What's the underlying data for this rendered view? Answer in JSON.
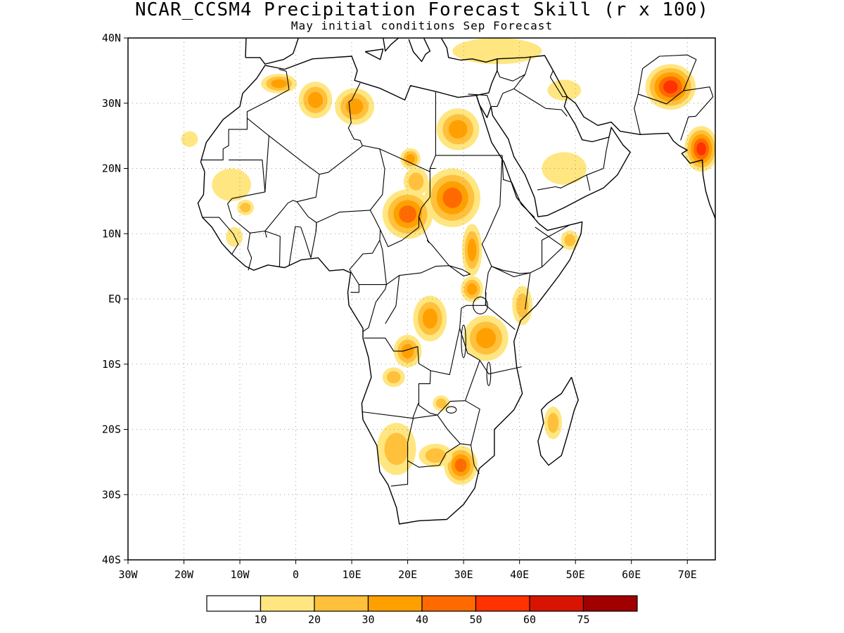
{
  "title": "NCAR_CCSM4 Precipitation Forecast Skill (r x 100)",
  "subtitle": "May initial conditions  Sep Forecast",
  "lat_labels": [
    "40N",
    "30N",
    "20N",
    "10N",
    "EQ",
    "10S",
    "20S",
    "30S",
    "40S"
  ],
  "lon_labels": [
    "30W",
    "20W",
    "10W",
    "0",
    "10E",
    "20E",
    "30E",
    "40E",
    "50E",
    "60E",
    "70E"
  ],
  "legend": {
    "colors": [
      "#ffffff",
      "#ffe680",
      "#ffc03c",
      "#ffa000",
      "#ff6a00",
      "#ff3200",
      "#d81400",
      "#a00000"
    ],
    "labels": [
      "10",
      "20",
      "30",
      "40",
      "50",
      "60",
      "75"
    ]
  },
  "map": {
    "lon_range": [
      -30,
      75
    ],
    "lat_range": [
      -40,
      40
    ]
  },
  "skill_regions": [
    {
      "lon": -3,
      "lat": 33,
      "rx": 3.2,
      "ry": 1.5,
      "level": 3
    },
    {
      "lon": 3.5,
      "lat": 30.5,
      "rx": 3.0,
      "ry": 2.8,
      "level": 3
    },
    {
      "lon": 10.5,
      "lat": 29.5,
      "rx": 3.5,
      "ry": 2.8,
      "level": 3
    },
    {
      "lon": 29,
      "lat": 26,
      "rx": 3.8,
      "ry": 3.2,
      "level": 3
    },
    {
      "lon": 36,
      "lat": 38,
      "rx": 8,
      "ry": 2,
      "level": 1
    },
    {
      "lon": 48,
      "lat": 32,
      "rx": 3,
      "ry": 1.6,
      "level": 1
    },
    {
      "lon": 67,
      "lat": 32.5,
      "rx": 4.5,
      "ry": 3.5,
      "level": 5
    },
    {
      "lon": 72.5,
      "lat": 23,
      "rx": 3.0,
      "ry": 3.5,
      "level": 5
    },
    {
      "lon": 20.5,
      "lat": 21.5,
      "rx": 1.8,
      "ry": 1.6,
      "level": 3
    },
    {
      "lon": 28,
      "lat": 15.5,
      "rx": 5.0,
      "ry": 4.5,
      "level": 4
    },
    {
      "lon": 20,
      "lat": 13,
      "rx": 4.5,
      "ry": 3.8,
      "level": 4
    },
    {
      "lon": 21.5,
      "lat": 18,
      "rx": 2.2,
      "ry": 2.2,
      "level": 2
    },
    {
      "lon": 31.5,
      "lat": 7.5,
      "rx": 1.8,
      "ry": 4.0,
      "level": 3
    },
    {
      "lon": 31.5,
      "lat": 1.5,
      "rx": 2.0,
      "ry": 2.0,
      "level": 3
    },
    {
      "lon": 34,
      "lat": -6,
      "rx": 4.0,
      "ry": 3.5,
      "level": 3
    },
    {
      "lon": 40.5,
      "lat": -1,
      "rx": 1.8,
      "ry": 3.0,
      "level": 2
    },
    {
      "lon": 24,
      "lat": -3,
      "rx": 3.0,
      "ry": 3.5,
      "level": 3
    },
    {
      "lon": 20,
      "lat": -8,
      "rx": 2.5,
      "ry": 2.5,
      "level": 3
    },
    {
      "lon": 17.5,
      "lat": -12,
      "rx": 2.0,
      "ry": 1.5,
      "level": 2
    },
    {
      "lon": 18,
      "lat": -23,
      "rx": 3.5,
      "ry": 4.0,
      "level": 2
    },
    {
      "lon": 29.5,
      "lat": -25.5,
      "rx": 3.0,
      "ry": 3.0,
      "level": 4
    },
    {
      "lon": 25,
      "lat": -24,
      "rx": 3.0,
      "ry": 1.8,
      "level": 2
    },
    {
      "lon": 46,
      "lat": -19,
      "rx": 1.6,
      "ry": 2.5,
      "level": 2
    },
    {
      "lon": 48,
      "lat": 20,
      "rx": 4,
      "ry": 2.5,
      "level": 1
    },
    {
      "lon": 49,
      "lat": 9,
      "rx": 1.6,
      "ry": 1.5,
      "level": 2
    },
    {
      "lon": -11.5,
      "lat": 17.5,
      "rx": 3.5,
      "ry": 2.5,
      "level": 1
    },
    {
      "lon": -9,
      "lat": 14,
      "rx": 1.5,
      "ry": 1.2,
      "level": 2
    },
    {
      "lon": -11,
      "lat": 9.5,
      "rx": 1.5,
      "ry": 1.5,
      "level": 1
    },
    {
      "lon": -19,
      "lat": 24.5,
      "rx": 1.5,
      "ry": 1.2,
      "level": 1
    },
    {
      "lon": 26,
      "lat": -16,
      "rx": 1.5,
      "ry": 1.2,
      "level": 2
    }
  ]
}
